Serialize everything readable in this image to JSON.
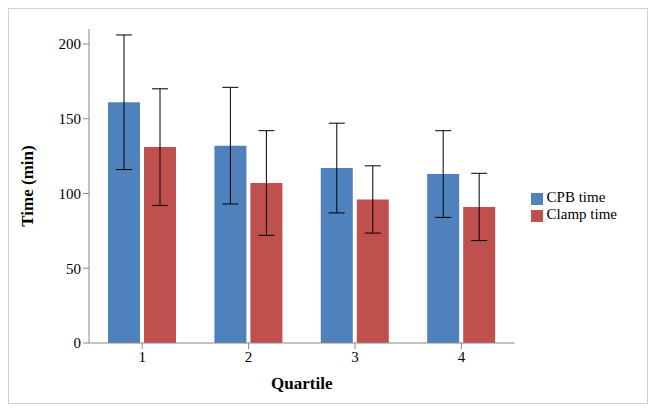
{
  "chart_data": {
    "type": "bar",
    "x_label": "Quartile",
    "y_label": "Time (min)",
    "categories": [
      "1",
      "2",
      "3",
      "4"
    ],
    "series": [
      {
        "name": "CPB time",
        "color": "#4f81bd",
        "values": [
          161,
          132,
          117,
          113
        ],
        "errors": [
          45,
          39,
          30,
          29
        ]
      },
      {
        "name": "Clamp time",
        "color": "#c0504d",
        "values": [
          131,
          107,
          96,
          91
        ],
        "errors": [
          39,
          35,
          22.5,
          22.5
        ]
      }
    ],
    "ylim": [
      0,
      210
    ],
    "yticks": [
      0,
      50,
      100,
      150,
      200
    ],
    "grid": false,
    "legend": "right"
  }
}
